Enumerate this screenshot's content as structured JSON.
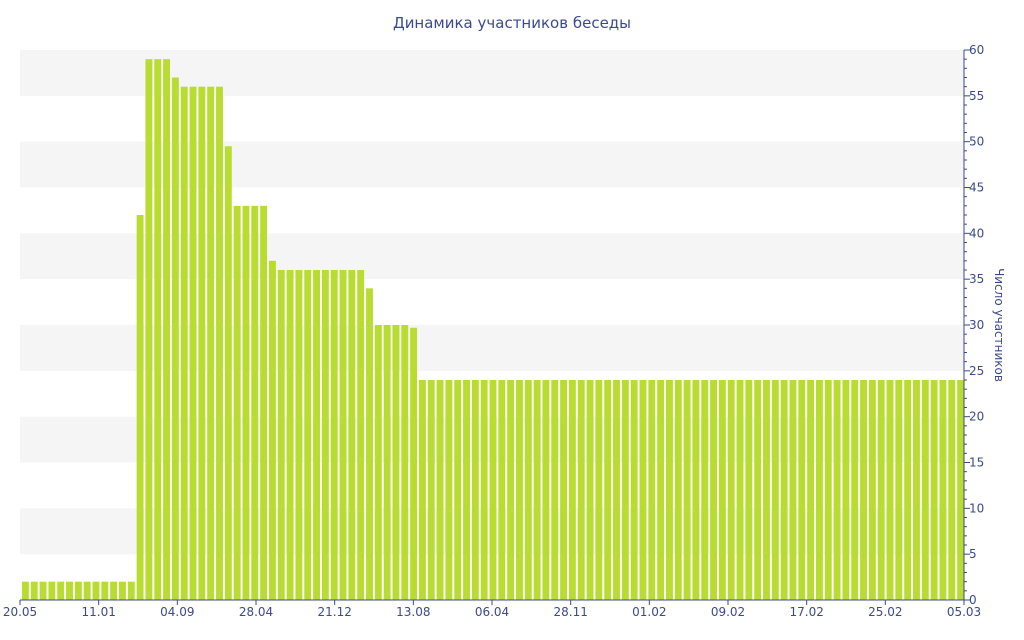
{
  "chart_data": {
    "type": "bar",
    "title": "Динамика участников беседы",
    "ylabel": "Число участников",
    "ylim": [
      0,
      60
    ],
    "y_ticks": [
      0,
      5,
      10,
      15,
      20,
      25,
      30,
      35,
      40,
      45,
      50,
      55,
      60
    ],
    "x_tick_labels": [
      "20.05",
      "11.01",
      "04.09",
      "28.04",
      "21.12",
      "13.08",
      "06.04",
      "28.11",
      "01.02",
      "09.02",
      "17.02",
      "25.02",
      "05.03"
    ],
    "grid": "alternating horizontal bands",
    "y_axis_position": "right",
    "bar_color": "#b8dc30",
    "values": [
      2,
      2,
      2,
      2,
      2,
      2,
      2,
      2,
      2,
      2,
      2,
      2,
      2,
      42,
      59,
      59,
      59,
      57,
      56,
      56,
      56,
      56,
      56,
      49.5,
      43,
      43,
      43,
      43,
      37,
      36,
      36,
      36,
      36,
      36,
      36,
      36,
      36,
      36,
      36,
      34,
      30,
      30,
      30,
      30,
      29.7,
      24,
      24,
      24,
      24,
      24,
      24,
      24,
      24,
      24,
      24,
      24,
      24,
      24,
      24,
      24,
      24,
      24,
      24,
      24,
      24,
      24,
      24,
      24,
      24,
      24,
      24,
      24,
      24,
      24,
      24,
      24,
      24,
      24,
      24,
      24,
      24,
      24,
      24,
      24,
      24,
      24,
      24,
      24,
      24,
      24,
      24,
      24,
      24,
      24,
      24,
      24,
      24,
      24,
      24,
      24,
      24,
      24,
      24,
      24,
      24,
      24,
      24
    ]
  }
}
